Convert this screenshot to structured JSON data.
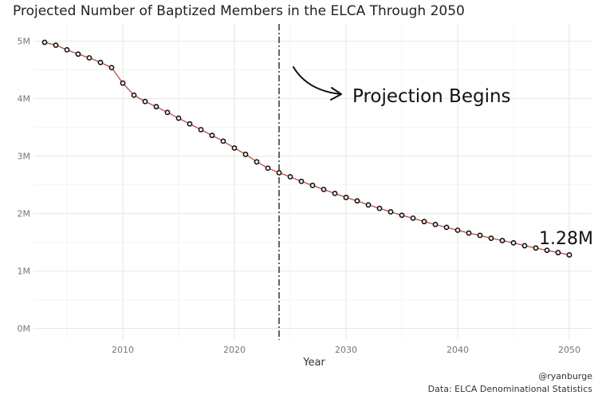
{
  "chart_data": {
    "type": "line",
    "title": "Projected Number of Baptized Members in the ELCA Through 2050",
    "xlabel": "Year",
    "ylabel": "",
    "xlim": [
      2002,
      2052
    ],
    "ylim": [
      -200000,
      5300000
    ],
    "x_ticks": [
      2010,
      2020,
      2030,
      2040,
      2050
    ],
    "x_tick_labels": [
      "2010",
      "2020",
      "2030",
      "2040",
      "2050"
    ],
    "y_ticks": [
      0,
      1000000,
      2000000,
      3000000,
      4000000,
      5000000
    ],
    "y_tick_labels": [
      "0M",
      "1M",
      "2M",
      "3M",
      "4M",
      "5M"
    ],
    "grid": true,
    "series": [
      {
        "name": "",
        "line_color": "#c0392b",
        "marker": "open-circle",
        "x": [
          2003,
          2004,
          2005,
          2006,
          2007,
          2008,
          2009,
          2010,
          2011,
          2012,
          2013,
          2014,
          2015,
          2016,
          2017,
          2018,
          2019,
          2020,
          2021,
          2022,
          2023,
          2024,
          2025,
          2026,
          2027,
          2028,
          2029,
          2030,
          2031,
          2032,
          2033,
          2034,
          2035,
          2036,
          2037,
          2038,
          2039,
          2040,
          2041,
          2042,
          2043,
          2044,
          2045,
          2046,
          2047,
          2048,
          2049,
          2050
        ],
        "values": [
          4980000,
          4930000,
          4850000,
          4775000,
          4710000,
          4630000,
          4540000,
          4270000,
          4060000,
          3950000,
          3860000,
          3760000,
          3660000,
          3560000,
          3460000,
          3360000,
          3260000,
          3140000,
          3030000,
          2900000,
          2790000,
          2710000,
          2640000,
          2560000,
          2490000,
          2420000,
          2350000,
          2280000,
          2220000,
          2150000,
          2090000,
          2030000,
          1970000,
          1920000,
          1860000,
          1810000,
          1760000,
          1710000,
          1660000,
          1620000,
          1570000,
          1530000,
          1490000,
          1440000,
          1400000,
          1360000,
          1320000,
          1280000
        ]
      }
    ],
    "vline": {
      "x": 2024,
      "style": "dashdot"
    },
    "annotation": {
      "text": "Projection Begins"
    },
    "end_label": "1.28M",
    "caption_lines": [
      "@ryanburge",
      "Data: ELCA Denominational Statistics"
    ]
  }
}
